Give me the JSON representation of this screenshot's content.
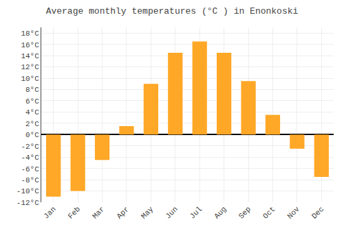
{
  "chart_data": {
    "type": "bar",
    "title": "Average monthly temperatures (°C ) in Enonkoski",
    "categories": [
      "Jan",
      "Feb",
      "Mar",
      "Apr",
      "May",
      "Jun",
      "Jul",
      "Aug",
      "Sep",
      "Oct",
      "Nov",
      "Dec"
    ],
    "values": [
      -11,
      -10,
      -4.5,
      1.5,
      9,
      14.5,
      16.5,
      14.5,
      9.5,
      3.5,
      -2.5,
      -7.5
    ],
    "color": "#FFA726",
    "ylim": [
      -12,
      19
    ],
    "yticks": [
      {
        "value": -12,
        "label": "-12°C"
      },
      {
        "value": -10,
        "label": "-10°C"
      },
      {
        "value": -8,
        "label": "-8°C"
      },
      {
        "value": -6,
        "label": "-6°C"
      },
      {
        "value": -4,
        "label": "-4°C"
      },
      {
        "value": -2,
        "label": "-2°C"
      },
      {
        "value": 0,
        "label": "0°C"
      },
      {
        "value": 2,
        "label": "2°C"
      },
      {
        "value": 4,
        "label": "4°C"
      },
      {
        "value": 6,
        "label": "6°C"
      },
      {
        "value": 8,
        "label": "8°C"
      },
      {
        "value": 10,
        "label": "10°C"
      },
      {
        "value": 12,
        "label": "12°C"
      },
      {
        "value": 14,
        "label": "14°C"
      },
      {
        "value": 16,
        "label": "16°C"
      },
      {
        "value": 18,
        "label": "18°C"
      }
    ],
    "grid": true
  }
}
